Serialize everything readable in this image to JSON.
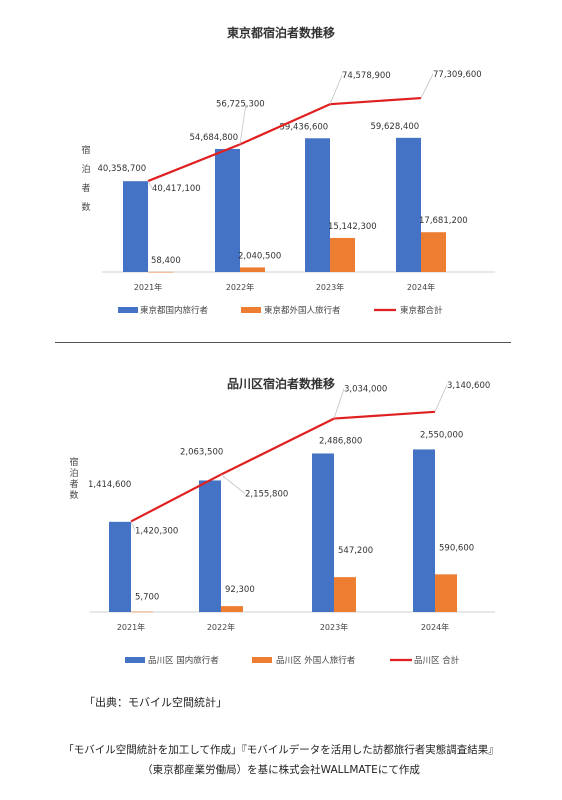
{
  "chart_data": [
    {
      "type": "bar",
      "title": "東京都宿泊者数推移",
      "ylabel": "宿泊者数",
      "categories": [
        "2021年",
        "2022年",
        "2023年",
        "2024年"
      ],
      "series": [
        {
          "name": "東京都国内旅行者",
          "type": "bar",
          "color": "#4472C4",
          "values": [
            40358700,
            54684800,
            59436600,
            59628400
          ],
          "labels": [
            "40,358,700",
            "54,684,800",
            "59,436,600",
            "59,628,400"
          ]
        },
        {
          "name": "東京都外国人旅行者",
          "type": "bar",
          "color": "#ED7D31",
          "values": [
            58400,
            2040500,
            15142300,
            17681200
          ],
          "labels": [
            "58,400",
            "2,040,500",
            "15,142,300",
            "17,681,200"
          ]
        },
        {
          "name": "東京都合計",
          "type": "line",
          "color": "#E02020",
          "values": [
            40417100,
            56725300,
            74578900,
            77309600
          ],
          "labels": [
            "40,417,100",
            "56,725,300",
            "74,578,900",
            "77,309,600"
          ]
        }
      ],
      "ylim": [
        0,
        80000000
      ],
      "grid": false,
      "legend": "bottom"
    },
    {
      "type": "bar",
      "title": "品川区宿泊者数推移",
      "ylabel": "宿泊者数",
      "categories": [
        "2021年",
        "2022年",
        "2023年",
        "2024年"
      ],
      "series": [
        {
          "name": "品川区 国内旅行者",
          "type": "bar",
          "color": "#4472C4",
          "values": [
            1414600,
            2063500,
            2486800,
            2550000
          ],
          "labels": [
            "1,414,600",
            "2,063,500",
            "2,486,800",
            "2,550,000"
          ]
        },
        {
          "name": "品川区 外国人旅行者",
          "type": "bar",
          "color": "#ED7D31",
          "values": [
            5700,
            92300,
            547200,
            590600
          ],
          "labels": [
            "5,700",
            "92,300",
            "547,200",
            "590,600"
          ]
        },
        {
          "name": "品川区 合計",
          "type": "line",
          "color": "#E02020",
          "values": [
            1420300,
            2155800,
            3034000,
            3140600
          ],
          "labels": [
            "1,420,300",
            "2,155,800",
            "3,034,000",
            "3,140,600"
          ]
        }
      ],
      "ylim": [
        0,
        3200000
      ],
      "grid": false,
      "legend": "bottom"
    }
  ],
  "footer": {
    "source": "「出典：モバイル空間統計」",
    "note_line1": "「モバイル空間統計を加工して作成」『モバイルデータを活用した訪都旅行者実態調査結果』",
    "note_line2": "（東京都産業労働局）を基に株式会社WALLMATEにて作成"
  }
}
